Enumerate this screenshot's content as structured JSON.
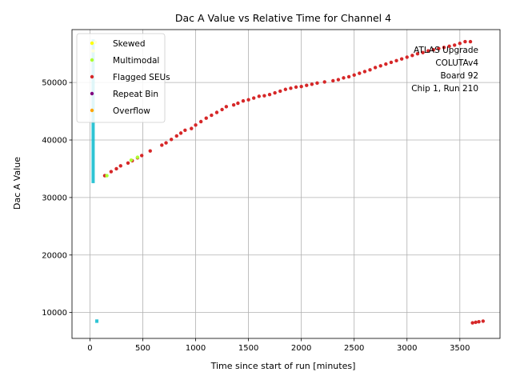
{
  "chart_data": {
    "type": "scatter",
    "title": "Dac A Value vs Relative Time for Channel 4",
    "xlabel": "Time since start of run [minutes]",
    "ylabel": "Dac A Value",
    "xlim": [
      -170,
      3880
    ],
    "ylim": [
      5500,
      59200
    ],
    "x_ticks": [
      0,
      500,
      1000,
      1500,
      2000,
      2500,
      3000,
      3500
    ],
    "y_ticks": [
      10000,
      20000,
      30000,
      40000,
      50000
    ],
    "grid": true,
    "legend_position": "top-left",
    "legend": [
      {
        "label": "Skewed",
        "color": "#ffff00"
      },
      {
        "label": "Multimodal",
        "color": "#adff2f"
      },
      {
        "label": "Flagged SEUs",
        "color": "#d62728"
      },
      {
        "label": "Repeat Bin",
        "color": "#800080"
      },
      {
        "label": "Overflow",
        "color": "#ffa500"
      }
    ],
    "annotation": [
      "ATLAS Upgrade",
      "COLUTAv4",
      "Board 92",
      "Chip 1, Run 210"
    ],
    "series": [
      {
        "name": "Flagged SEUs",
        "color": "#d62728",
        "points": [
          [
            140,
            33800
          ],
          [
            200,
            34500
          ],
          [
            250,
            35000
          ],
          [
            290,
            35500
          ],
          [
            360,
            36000
          ],
          [
            400,
            36400
          ],
          [
            450,
            36900
          ],
          [
            490,
            37300
          ],
          [
            570,
            38100
          ],
          [
            680,
            39100
          ],
          [
            720,
            39500
          ],
          [
            770,
            40100
          ],
          [
            820,
            40700
          ],
          [
            860,
            41200
          ],
          [
            900,
            41700
          ],
          [
            960,
            42000
          ],
          [
            1000,
            42600
          ],
          [
            1050,
            43200
          ],
          [
            1100,
            43800
          ],
          [
            1150,
            44300
          ],
          [
            1200,
            44800
          ],
          [
            1250,
            45300
          ],
          [
            1290,
            45800
          ],
          [
            1360,
            46100
          ],
          [
            1400,
            46400
          ],
          [
            1450,
            46800
          ],
          [
            1500,
            47000
          ],
          [
            1550,
            47300
          ],
          [
            1600,
            47600
          ],
          [
            1650,
            47700
          ],
          [
            1700,
            47900
          ],
          [
            1750,
            48200
          ],
          [
            1800,
            48500
          ],
          [
            1850,
            48800
          ],
          [
            1900,
            49000
          ],
          [
            1950,
            49200
          ],
          [
            2000,
            49300
          ],
          [
            2050,
            49500
          ],
          [
            2100,
            49700
          ],
          [
            2150,
            49900
          ],
          [
            2220,
            50100
          ],
          [
            2300,
            50300
          ],
          [
            2350,
            50500
          ],
          [
            2400,
            50800
          ],
          [
            2450,
            51000
          ],
          [
            2500,
            51300
          ],
          [
            2550,
            51600
          ],
          [
            2600,
            51900
          ],
          [
            2650,
            52200
          ],
          [
            2700,
            52600
          ],
          [
            2750,
            52900
          ],
          [
            2800,
            53200
          ],
          [
            2850,
            53500
          ],
          [
            2900,
            53800
          ],
          [
            2950,
            54100
          ],
          [
            3000,
            54400
          ],
          [
            3050,
            54700
          ],
          [
            3100,
            55000
          ],
          [
            3150,
            55200
          ],
          [
            3200,
            55500
          ],
          [
            3250,
            55700
          ],
          [
            3300,
            55900
          ],
          [
            3350,
            56100
          ],
          [
            3400,
            56300
          ],
          [
            3450,
            56500
          ],
          [
            3500,
            56800
          ],
          [
            3550,
            57100
          ],
          [
            3600,
            57100
          ],
          [
            3620,
            8200
          ],
          [
            3650,
            8300
          ],
          [
            3680,
            8400
          ],
          [
            3720,
            8500
          ]
        ]
      },
      {
        "name": "Multimodal",
        "color": "#adff2f",
        "points": [
          [
            160,
            33800
          ],
          [
            390,
            36500
          ],
          [
            450,
            37000
          ]
        ]
      },
      {
        "name": "Skewed",
        "color": "#ffff00",
        "points": [
          [
            30,
            55500
          ],
          [
            50,
            57000
          ]
        ]
      }
    ],
    "unlabeled_series": [
      {
        "color": "#17becf",
        "x": [
          0,
          60
        ],
        "y": [
          32500,
          57500
        ]
      },
      {
        "color": "#17becf",
        "x": [
          60,
          70
        ],
        "y": [
          8200,
          8800
        ]
      }
    ]
  }
}
